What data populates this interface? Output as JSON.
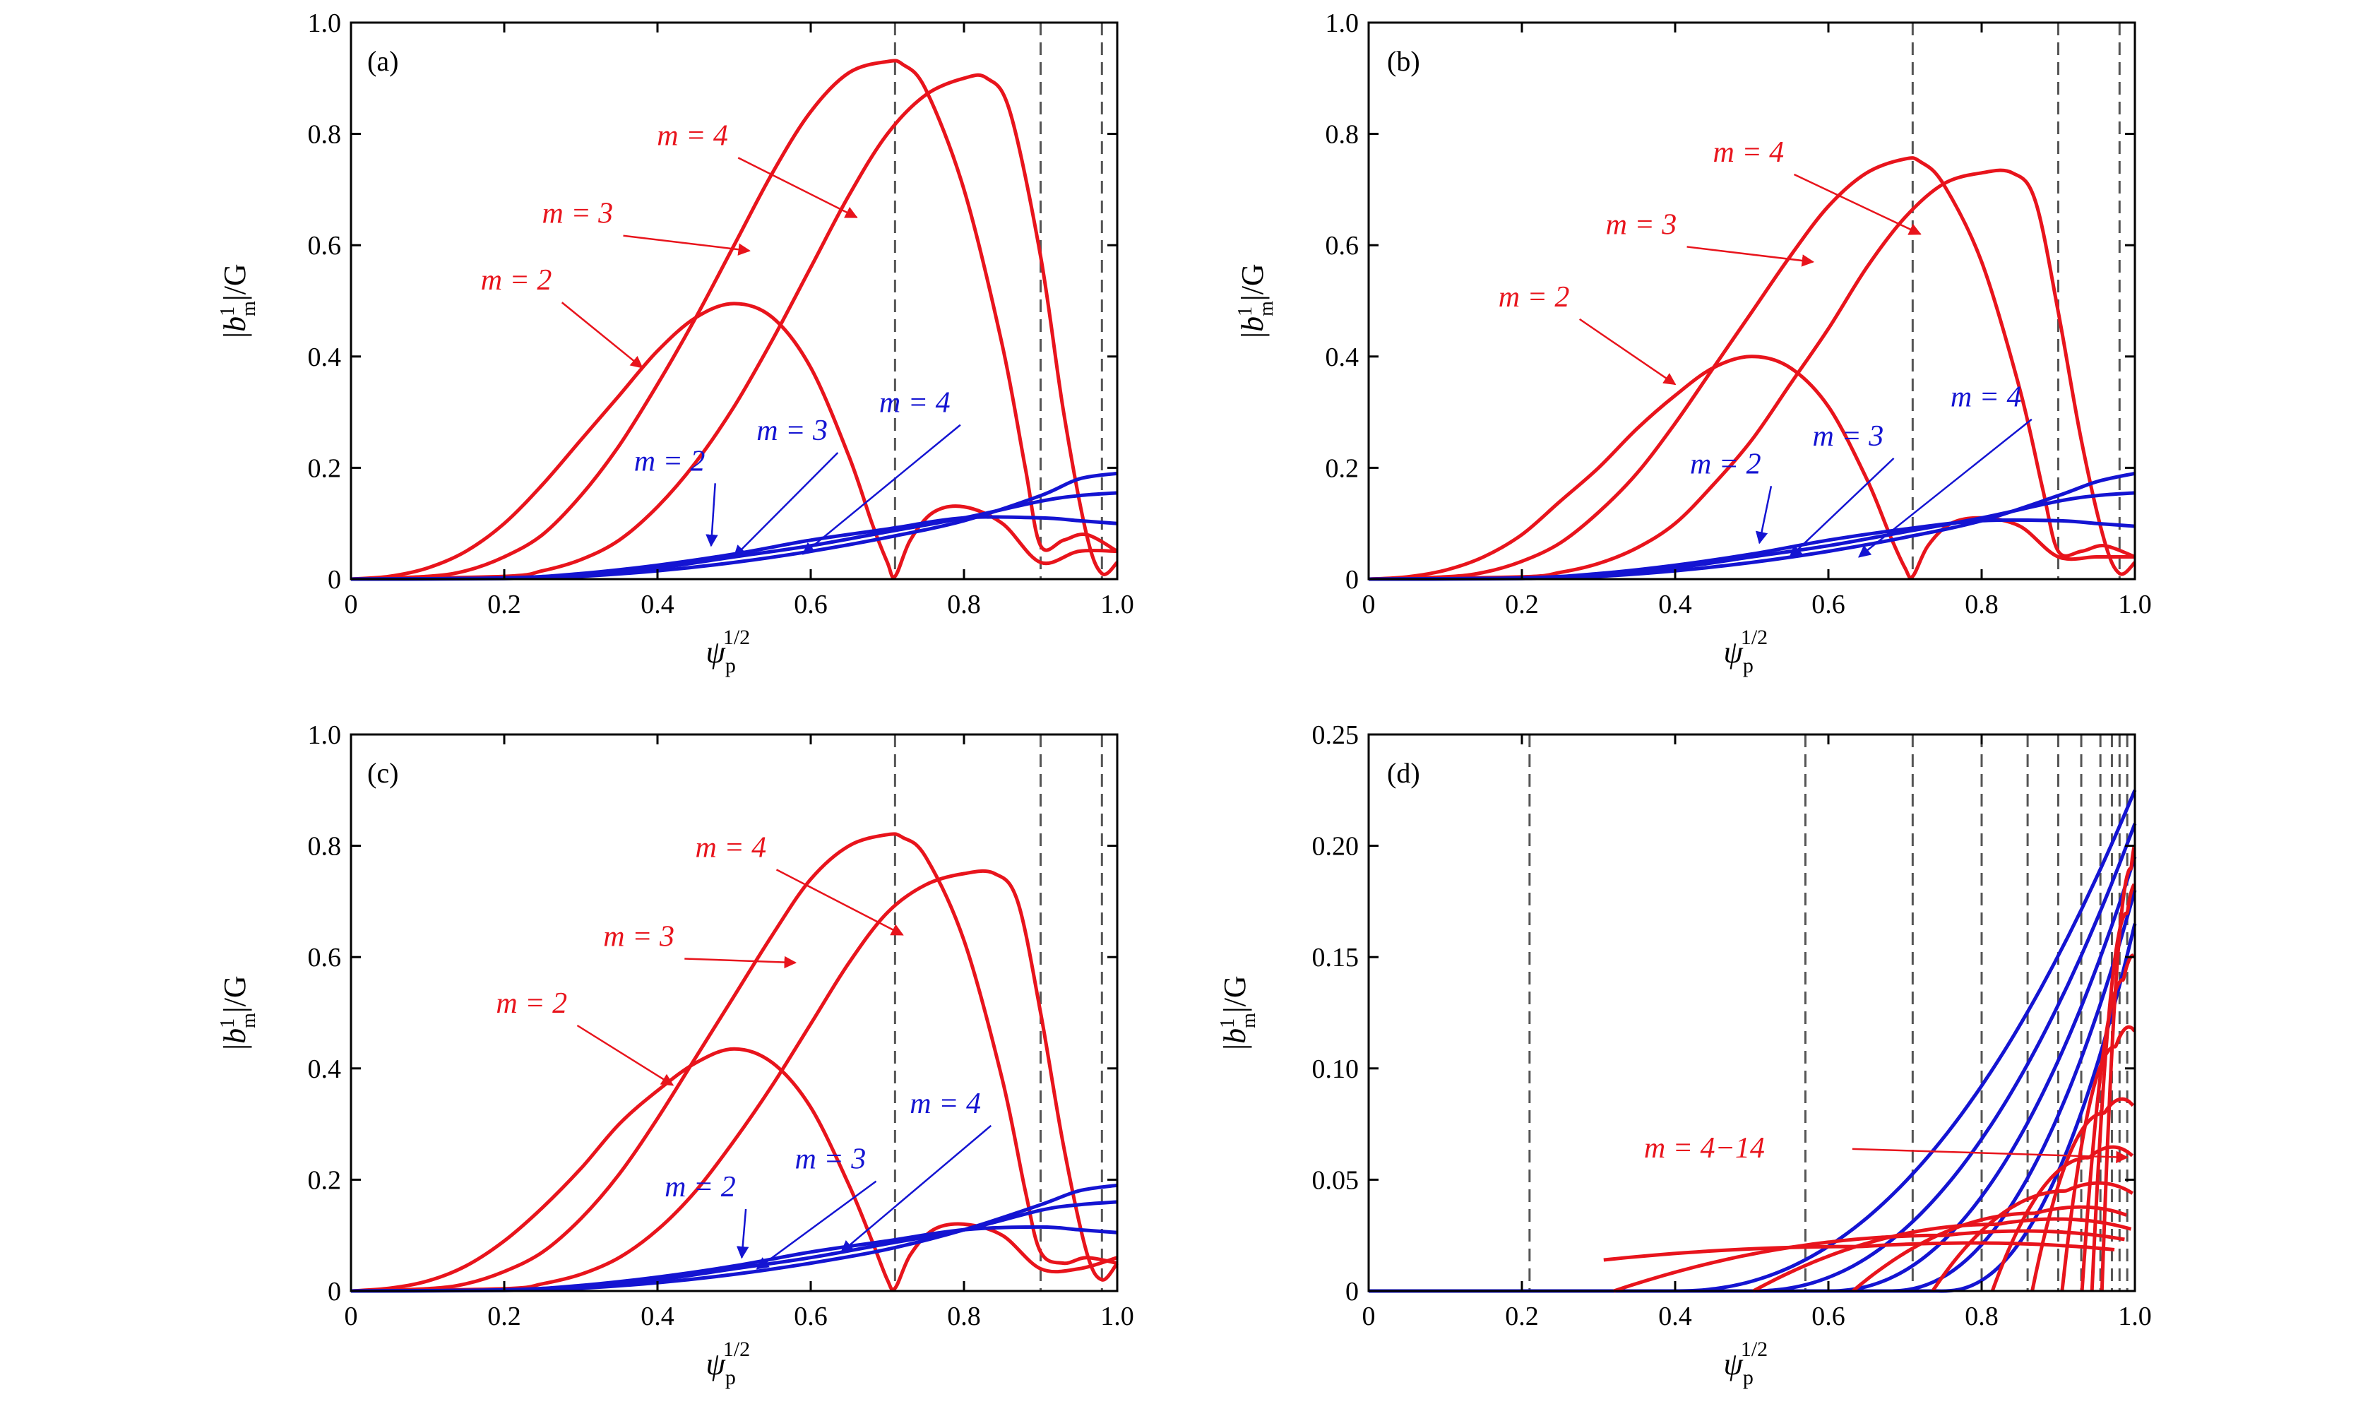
{
  "colors": {
    "red": "#e8141c",
    "blue": "#1414d2",
    "dash": "#555555"
  },
  "chart_data": [
    {
      "id": "a",
      "type": "line",
      "panel_label": "(a)",
      "xlabel_sym": "ψ",
      "xlabel_sub": "p",
      "xlabel_sup": "1/2",
      "ylabel_pre": "|",
      "ylabel_sym": "b",
      "ylabel_sup": "1",
      "ylabel_sub": "m",
      "ylabel_post": "|/G",
      "xlim": [
        0,
        1
      ],
      "ylim": [
        0,
        1
      ],
      "xticks": [
        "0",
        "0.2",
        "0.4",
        "0.6",
        "0.8",
        "1.0"
      ],
      "yticks": [
        "0",
        "0.2",
        "0.4",
        "0.6",
        "0.8",
        "1.0"
      ],
      "vlines": [
        0.71,
        0.9,
        0.98
      ],
      "series": [
        {
          "color": "red",
          "x": [
            0,
            0.05,
            0.1,
            0.15,
            0.2,
            0.25,
            0.3,
            0.35,
            0.4,
            0.45,
            0.5,
            0.55,
            0.6,
            0.65,
            0.68,
            0.7,
            0.71,
            0.73,
            0.76,
            0.8,
            0.85,
            0.9,
            0.95,
            1.0
          ],
          "y": [
            0,
            0.005,
            0.02,
            0.05,
            0.1,
            0.17,
            0.25,
            0.33,
            0.41,
            0.47,
            0.495,
            0.47,
            0.38,
            0.22,
            0.1,
            0.03,
            0.005,
            0.07,
            0.12,
            0.13,
            0.1,
            0.03,
            0.05,
            0.05
          ]
        },
        {
          "color": "red",
          "x": [
            0,
            0.1,
            0.15,
            0.2,
            0.25,
            0.3,
            0.35,
            0.4,
            0.45,
            0.5,
            0.55,
            0.6,
            0.65,
            0.7,
            0.72,
            0.75,
            0.8,
            0.85,
            0.88,
            0.9,
            0.93,
            0.96,
            1.0
          ],
          "y": [
            0,
            0.005,
            0.015,
            0.04,
            0.08,
            0.15,
            0.24,
            0.35,
            0.47,
            0.6,
            0.73,
            0.84,
            0.91,
            0.93,
            0.925,
            0.88,
            0.7,
            0.42,
            0.2,
            0.06,
            0.07,
            0.08,
            0.05
          ]
        },
        {
          "color": "red",
          "x": [
            0,
            0.2,
            0.25,
            0.3,
            0.35,
            0.4,
            0.45,
            0.5,
            0.55,
            0.6,
            0.65,
            0.7,
            0.75,
            0.8,
            0.83,
            0.86,
            0.9,
            0.93,
            0.96,
            0.98,
            1.0
          ],
          "y": [
            0,
            0.005,
            0.015,
            0.035,
            0.07,
            0.13,
            0.21,
            0.31,
            0.43,
            0.56,
            0.69,
            0.8,
            0.87,
            0.9,
            0.9,
            0.84,
            0.58,
            0.3,
            0.08,
            0.01,
            0.03
          ]
        },
        {
          "color": "blue",
          "x": [
            0,
            0.2,
            0.3,
            0.4,
            0.5,
            0.6,
            0.7,
            0.8,
            0.9,
            0.95,
            1.0
          ],
          "y": [
            0,
            0.002,
            0.01,
            0.025,
            0.045,
            0.07,
            0.09,
            0.11,
            0.11,
            0.105,
            0.1
          ]
        },
        {
          "color": "blue",
          "x": [
            0,
            0.2,
            0.3,
            0.4,
            0.5,
            0.6,
            0.7,
            0.8,
            0.9,
            0.95,
            1.0
          ],
          "y": [
            0,
            0.002,
            0.008,
            0.02,
            0.04,
            0.06,
            0.085,
            0.11,
            0.14,
            0.15,
            0.155
          ]
        },
        {
          "color": "blue",
          "x": [
            0,
            0.2,
            0.3,
            0.4,
            0.5,
            0.6,
            0.7,
            0.8,
            0.9,
            0.95,
            1.0
          ],
          "y": [
            0,
            0.001,
            0.005,
            0.015,
            0.03,
            0.05,
            0.075,
            0.105,
            0.15,
            0.18,
            0.19
          ]
        }
      ],
      "annotations": [
        {
          "text": "m = 2",
          "color": "red",
          "tx": 0.22,
          "ty": 0.52,
          "ax": 0.38,
          "ay": 0.38
        },
        {
          "text": "m = 3",
          "color": "red",
          "tx": 0.3,
          "ty": 0.64,
          "ax": 0.52,
          "ay": 0.59
        },
        {
          "text": "m = 4",
          "color": "red",
          "tx": 0.45,
          "ty": 0.78,
          "ax": 0.66,
          "ay": 0.65
        },
        {
          "text": "m = 2",
          "color": "blue",
          "tx": 0.42,
          "ty": 0.195,
          "ax": 0.47,
          "ay": 0.06
        },
        {
          "text": "m = 3",
          "color": "blue",
          "tx": 0.58,
          "ty": 0.25,
          "ax": 0.5,
          "ay": 0.04
        },
        {
          "text": "m = 4",
          "color": "blue",
          "tx": 0.74,
          "ty": 0.3,
          "ax": 0.59,
          "ay": 0.045
        }
      ]
    },
    {
      "id": "b",
      "type": "line",
      "panel_label": "(b)",
      "xlabel_sym": "ψ",
      "xlabel_sub": "p",
      "xlabel_sup": "1/2",
      "ylabel_pre": "|",
      "ylabel_sym": "b",
      "ylabel_sup": "1",
      "ylabel_sub": "m",
      "ylabel_post": "|/G",
      "xlim": [
        0,
        1
      ],
      "ylim": [
        0,
        1
      ],
      "xticks": [
        "0",
        "0.2",
        "0.4",
        "0.6",
        "0.8",
        "1.0"
      ],
      "yticks": [
        "0",
        "0.2",
        "0.4",
        "0.6",
        "0.8",
        "1.0"
      ],
      "vlines": [
        0.71,
        0.9,
        0.98
      ],
      "series": [
        {
          "color": "red",
          "x": [
            0,
            0.05,
            0.1,
            0.15,
            0.2,
            0.25,
            0.3,
            0.35,
            0.4,
            0.45,
            0.5,
            0.55,
            0.6,
            0.65,
            0.68,
            0.7,
            0.71,
            0.73,
            0.76,
            0.8,
            0.85,
            0.9,
            0.95,
            1.0
          ],
          "y": [
            0,
            0.004,
            0.016,
            0.04,
            0.08,
            0.14,
            0.2,
            0.27,
            0.33,
            0.38,
            0.4,
            0.38,
            0.31,
            0.18,
            0.08,
            0.02,
            0.005,
            0.06,
            0.1,
            0.11,
            0.095,
            0.04,
            0.04,
            0.04
          ]
        },
        {
          "color": "red",
          "x": [
            0,
            0.1,
            0.15,
            0.2,
            0.25,
            0.3,
            0.35,
            0.4,
            0.45,
            0.5,
            0.55,
            0.6,
            0.65,
            0.7,
            0.72,
            0.75,
            0.8,
            0.85,
            0.88,
            0.9,
            0.93,
            0.96,
            1.0
          ],
          "y": [
            0,
            0.004,
            0.012,
            0.032,
            0.065,
            0.12,
            0.19,
            0.28,
            0.38,
            0.48,
            0.58,
            0.67,
            0.73,
            0.755,
            0.75,
            0.71,
            0.57,
            0.34,
            0.16,
            0.05,
            0.05,
            0.06,
            0.04
          ]
        },
        {
          "color": "red",
          "x": [
            0,
            0.2,
            0.25,
            0.3,
            0.35,
            0.4,
            0.45,
            0.5,
            0.55,
            0.6,
            0.65,
            0.7,
            0.75,
            0.8,
            0.84,
            0.87,
            0.9,
            0.93,
            0.96,
            0.98,
            1.0
          ],
          "y": [
            0,
            0.004,
            0.012,
            0.028,
            0.056,
            0.1,
            0.17,
            0.25,
            0.35,
            0.45,
            0.56,
            0.65,
            0.71,
            0.73,
            0.73,
            0.68,
            0.48,
            0.25,
            0.07,
            0.01,
            0.03
          ]
        },
        {
          "color": "blue",
          "x": [
            0,
            0.2,
            0.3,
            0.4,
            0.5,
            0.6,
            0.7,
            0.8,
            0.9,
            0.95,
            1.0
          ],
          "y": [
            0,
            0.002,
            0.01,
            0.025,
            0.045,
            0.07,
            0.09,
            0.105,
            0.105,
            0.1,
            0.095
          ]
        },
        {
          "color": "blue",
          "x": [
            0,
            0.2,
            0.3,
            0.4,
            0.5,
            0.6,
            0.7,
            0.8,
            0.9,
            0.95,
            1.0
          ],
          "y": [
            0,
            0.002,
            0.008,
            0.02,
            0.04,
            0.06,
            0.085,
            0.11,
            0.14,
            0.15,
            0.155
          ]
        },
        {
          "color": "blue",
          "x": [
            0,
            0.2,
            0.3,
            0.4,
            0.5,
            0.6,
            0.7,
            0.8,
            0.9,
            0.95,
            1.0
          ],
          "y": [
            0,
            0.001,
            0.005,
            0.015,
            0.03,
            0.05,
            0.075,
            0.105,
            0.15,
            0.175,
            0.19
          ]
        }
      ],
      "annotations": [
        {
          "text": "m = 2",
          "color": "red",
          "tx": 0.22,
          "ty": 0.49,
          "ax": 0.4,
          "ay": 0.35
        },
        {
          "text": "m = 3",
          "color": "red",
          "tx": 0.36,
          "ty": 0.62,
          "ax": 0.58,
          "ay": 0.57
        },
        {
          "text": "m = 4",
          "color": "red",
          "tx": 0.5,
          "ty": 0.75,
          "ax": 0.72,
          "ay": 0.62
        },
        {
          "text": "m = 2",
          "color": "blue",
          "tx": 0.47,
          "ty": 0.19,
          "ax": 0.51,
          "ay": 0.065
        },
        {
          "text": "m = 3",
          "color": "blue",
          "tx": 0.63,
          "ty": 0.24,
          "ax": 0.55,
          "ay": 0.04
        },
        {
          "text": "m = 4",
          "color": "blue",
          "tx": 0.81,
          "ty": 0.31,
          "ax": 0.64,
          "ay": 0.04
        }
      ]
    },
    {
      "id": "c",
      "type": "line",
      "panel_label": "(c)",
      "xlabel_sym": "ψ",
      "xlabel_sub": "p",
      "xlabel_sup": "1/2",
      "ylabel_pre": "|",
      "ylabel_sym": "b",
      "ylabel_sup": "1",
      "ylabel_sub": "m",
      "ylabel_post": "|/G",
      "xlim": [
        0,
        1
      ],
      "ylim": [
        0,
        1
      ],
      "xticks": [
        "0",
        "0.2",
        "0.4",
        "0.6",
        "0.8",
        "1.0"
      ],
      "yticks": [
        "0",
        "0.2",
        "0.4",
        "0.6",
        "0.8",
        "1.0"
      ],
      "vlines": [
        0.71,
        0.9,
        0.98
      ],
      "series": [
        {
          "color": "red",
          "x": [
            0,
            0.05,
            0.1,
            0.15,
            0.2,
            0.25,
            0.3,
            0.35,
            0.4,
            0.45,
            0.5,
            0.55,
            0.6,
            0.65,
            0.68,
            0.7,
            0.71,
            0.73,
            0.76,
            0.8,
            0.85,
            0.9,
            0.95,
            1.0
          ],
          "y": [
            0,
            0.005,
            0.018,
            0.045,
            0.09,
            0.15,
            0.22,
            0.3,
            0.36,
            0.41,
            0.435,
            0.41,
            0.33,
            0.19,
            0.09,
            0.02,
            0.005,
            0.065,
            0.11,
            0.12,
            0.1,
            0.04,
            0.04,
            0.06
          ]
        },
        {
          "color": "red",
          "x": [
            0,
            0.1,
            0.15,
            0.2,
            0.25,
            0.3,
            0.35,
            0.4,
            0.45,
            0.5,
            0.55,
            0.6,
            0.65,
            0.7,
            0.72,
            0.75,
            0.8,
            0.85,
            0.88,
            0.9,
            0.93,
            0.96,
            1.0
          ],
          "y": [
            0,
            0.004,
            0.013,
            0.035,
            0.07,
            0.13,
            0.21,
            0.31,
            0.42,
            0.53,
            0.64,
            0.74,
            0.8,
            0.82,
            0.815,
            0.78,
            0.63,
            0.38,
            0.18,
            0.07,
            0.05,
            0.06,
            0.05
          ]
        },
        {
          "color": "red",
          "x": [
            0,
            0.2,
            0.25,
            0.3,
            0.35,
            0.4,
            0.45,
            0.5,
            0.55,
            0.6,
            0.65,
            0.7,
            0.75,
            0.8,
            0.84,
            0.87,
            0.9,
            0.93,
            0.96,
            0.98,
            1.0
          ],
          "y": [
            0,
            0.004,
            0.013,
            0.03,
            0.06,
            0.11,
            0.18,
            0.27,
            0.37,
            0.48,
            0.59,
            0.68,
            0.73,
            0.75,
            0.75,
            0.7,
            0.5,
            0.26,
            0.07,
            0.02,
            0.05
          ]
        },
        {
          "color": "blue",
          "x": [
            0,
            0.2,
            0.3,
            0.4,
            0.5,
            0.6,
            0.7,
            0.8,
            0.9,
            0.95,
            1.0
          ],
          "y": [
            0,
            0.002,
            0.01,
            0.025,
            0.045,
            0.07,
            0.09,
            0.11,
            0.115,
            0.11,
            0.105
          ]
        },
        {
          "color": "blue",
          "x": [
            0,
            0.2,
            0.3,
            0.4,
            0.5,
            0.6,
            0.7,
            0.8,
            0.9,
            0.95,
            1.0
          ],
          "y": [
            0,
            0.002,
            0.008,
            0.02,
            0.04,
            0.06,
            0.085,
            0.11,
            0.145,
            0.155,
            0.16
          ]
        },
        {
          "color": "blue",
          "x": [
            0,
            0.2,
            0.3,
            0.4,
            0.5,
            0.6,
            0.7,
            0.8,
            0.9,
            0.95,
            1.0
          ],
          "y": [
            0,
            0.001,
            0.005,
            0.015,
            0.03,
            0.05,
            0.075,
            0.11,
            0.155,
            0.18,
            0.19
          ]
        }
      ],
      "annotations": [
        {
          "text": "m = 2",
          "color": "red",
          "tx": 0.24,
          "ty": 0.5,
          "ax": 0.42,
          "ay": 0.37
        },
        {
          "text": "m = 3",
          "color": "red",
          "tx": 0.38,
          "ty": 0.62,
          "ax": 0.58,
          "ay": 0.59
        },
        {
          "text": "m = 4",
          "color": "red",
          "tx": 0.5,
          "ty": 0.78,
          "ax": 0.72,
          "ay": 0.64
        },
        {
          "text": "m = 2",
          "color": "blue",
          "tx": 0.46,
          "ty": 0.17,
          "ax": 0.51,
          "ay": 0.06
        },
        {
          "text": "m = 3",
          "color": "blue",
          "tx": 0.63,
          "ty": 0.22,
          "ax": 0.53,
          "ay": 0.04
        },
        {
          "text": "m = 4",
          "color": "blue",
          "tx": 0.78,
          "ty": 0.32,
          "ax": 0.64,
          "ay": 0.07
        }
      ]
    },
    {
      "id": "d",
      "type": "line",
      "panel_label": "(d)",
      "xlabel_sym": "ψ",
      "xlabel_sub": "p",
      "xlabel_sup": "1/2",
      "ylabel_pre": "|",
      "ylabel_sym": "b",
      "ylabel_sup": "1",
      "ylabel_sub": "m",
      "ylabel_post": "|/G",
      "xlim": [
        0,
        1
      ],
      "ylim": [
        0,
        0.25
      ],
      "xticks": [
        "0",
        "0.2",
        "0.4",
        "0.6",
        "0.8",
        "1.0"
      ],
      "yticks": [
        "0",
        "0.05",
        "0.10",
        "0.15",
        "0.20",
        "0.25"
      ],
      "vlines": [
        0.21,
        0.57,
        0.71,
        0.8,
        0.86,
        0.9,
        0.93,
        0.955,
        0.97,
        0.98,
        0.99
      ],
      "blue_family": {
        "color": "blue",
        "amplitudes": [
          0.225,
          0.21,
          0.195,
          0.18,
          0.165
        ],
        "starts": [
          0.4,
          0.5,
          0.6,
          0.68,
          0.75
        ]
      },
      "red_family": {
        "color": "red",
        "centers": [
          0.64,
          0.75,
          0.82,
          0.87,
          0.91,
          0.94,
          0.96,
          0.975,
          0.985,
          0.99,
          0.995
        ],
        "peaks": [
          0.02,
          0.025,
          0.03,
          0.035,
          0.045,
          0.06,
          0.08,
          0.11,
          0.14,
          0.17,
          0.19
        ]
      },
      "annotations": [
        {
          "text": "m = 4−14",
          "color": "red",
          "tx": 0.41,
          "ty": 0.06,
          "ax": 0.99,
          "ay": 0.06
        }
      ]
    }
  ]
}
